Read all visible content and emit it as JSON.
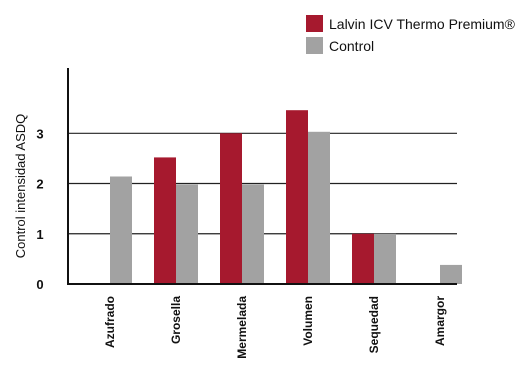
{
  "chart_data": {
    "type": "bar",
    "title": "",
    "xlabel": "",
    "ylabel": "Control intensidad ASDQ",
    "ylim": [
      0,
      4.3
    ],
    "yticks": [
      0,
      1,
      2,
      3
    ],
    "grid": true,
    "legend_position": "top-right",
    "categories": [
      "Azufrado",
      "Grosella",
      "Mermelada",
      "Volumen",
      "Sequedad",
      "Amargor"
    ],
    "series": [
      {
        "name": "Lalvin ICV Thermo Premium®",
        "color": "#a6192e",
        "values": [
          0,
          2.52,
          3.0,
          3.46,
          1.0,
          0
        ]
      },
      {
        "name": "Control",
        "color": "#a2a2a2",
        "values": [
          2.14,
          1.98,
          1.98,
          3.03,
          1.0,
          0.38
        ]
      }
    ]
  }
}
